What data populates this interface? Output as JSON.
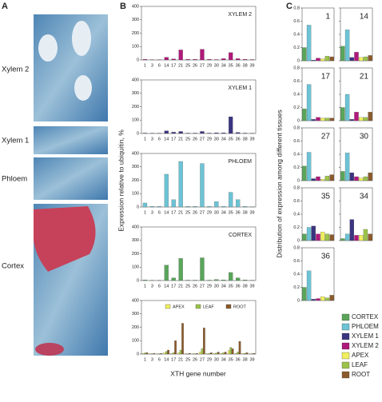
{
  "figure": {
    "panel_labels": [
      "A",
      "B",
      "C"
    ],
    "micrographs": [
      "Xylem 2",
      "Xylem 1",
      "Phloem",
      "Cortex"
    ],
    "panel_b_ylabel": "Expression relative to ubiquitin, %",
    "panel_b_xlabel": "XTH gene number",
    "panel_c_ylabel": "Distribution of expression among different tissues",
    "panel_c_legend": [
      {
        "name": "CORTEX",
        "color": "#5aa55a"
      },
      {
        "name": "PHLOEM",
        "color": "#6cc3d5"
      },
      {
        "name": "XYLEM 1",
        "color": "#3b3480"
      },
      {
        "name": "XYLEM 2",
        "color": "#b0187a"
      },
      {
        "name": "APEX",
        "color": "#f0ef60"
      },
      {
        "name": "LEAF",
        "color": "#9bc34a"
      },
      {
        "name": "ROOT",
        "color": "#8b5a2b"
      }
    ]
  },
  "chart_data": [
    {
      "type": "bar",
      "title": "XYLEM 2",
      "color": "#b0187a",
      "categories": [
        "1",
        "3",
        "6",
        "14",
        "17",
        "21",
        "25",
        "26",
        "27",
        "29",
        "30",
        "34",
        "35",
        "36",
        "38",
        "39"
      ],
      "values": [
        5,
        2,
        2,
        20,
        8,
        75,
        5,
        5,
        80,
        5,
        3,
        10,
        55,
        10,
        5,
        3
      ],
      "ylim": [
        0,
        400
      ],
      "yticks": [
        0,
        100,
        200,
        300,
        400
      ]
    },
    {
      "type": "bar",
      "title": "XYLEM 1",
      "color": "#3b3480",
      "categories": [
        "1",
        "3",
        "6",
        "14",
        "17",
        "21",
        "25",
        "26",
        "27",
        "29",
        "30",
        "34",
        "35",
        "36",
        "38",
        "39"
      ],
      "values": [
        3,
        2,
        2,
        20,
        10,
        15,
        3,
        3,
        15,
        3,
        5,
        5,
        125,
        8,
        3,
        2
      ],
      "ylim": [
        0,
        400
      ],
      "yticks": [
        0,
        100,
        200,
        300,
        400
      ]
    },
    {
      "type": "bar",
      "title": "PHLOEM",
      "color": "#6cc3d5",
      "categories": [
        "1",
        "3",
        "6",
        "14",
        "17",
        "21",
        "25",
        "26",
        "27",
        "29",
        "30",
        "34",
        "35",
        "36",
        "38",
        "39"
      ],
      "values": [
        30,
        5,
        5,
        245,
        55,
        340,
        5,
        5,
        325,
        5,
        40,
        5,
        110,
        55,
        5,
        2
      ],
      "ylim": [
        0,
        400
      ],
      "yticks": [
        0,
        100,
        200,
        300,
        400
      ]
    },
    {
      "type": "bar",
      "title": "CORTEX",
      "color": "#5aa55a",
      "categories": [
        "1",
        "3",
        "6",
        "14",
        "17",
        "21",
        "25",
        "26",
        "27",
        "29",
        "30",
        "34",
        "35",
        "36",
        "38",
        "39"
      ],
      "values": [
        5,
        2,
        2,
        115,
        20,
        165,
        3,
        3,
        170,
        3,
        8,
        5,
        60,
        20,
        5,
        2
      ],
      "ylim": [
        0,
        400
      ],
      "yticks": [
        0,
        100,
        200,
        300,
        400
      ]
    },
    {
      "type": "bar",
      "categories": [
        "1",
        "3",
        "6",
        "14",
        "17",
        "21",
        "25",
        "26",
        "27",
        "29",
        "30",
        "34",
        "35",
        "36",
        "38",
        "39"
      ],
      "series": [
        {
          "name": "APEX",
          "color": "#f0ef60",
          "values": [
            5,
            3,
            2,
            10,
            5,
            10,
            3,
            3,
            15,
            3,
            5,
            5,
            25,
            5,
            5,
            3
          ]
        },
        {
          "name": "LEAF",
          "color": "#9bc34a",
          "values": [
            8,
            3,
            3,
            20,
            10,
            30,
            3,
            3,
            40,
            5,
            8,
            10,
            50,
            15,
            5,
            3
          ]
        },
        {
          "name": "ROOT",
          "color": "#8b5a2b",
          "values": [
            10,
            5,
            5,
            30,
            100,
            230,
            5,
            5,
            195,
            10,
            15,
            15,
            40,
            95,
            10,
            5
          ]
        }
      ],
      "ylim": [
        0,
        400
      ],
      "yticks": [
        0,
        100,
        200,
        300,
        400
      ]
    },
    {
      "type": "bar",
      "title": "1",
      "values": [
        0.2,
        0.54,
        0.01,
        0.04,
        0.03,
        0.07,
        0.06
      ],
      "ylim": [
        0,
        0.8
      ],
      "yticks": [
        0,
        0.2,
        0.4,
        0.6,
        0.8
      ]
    },
    {
      "type": "bar",
      "title": "14",
      "values": [
        0.22,
        0.47,
        0.05,
        0.13,
        0.05,
        0.06,
        0.08
      ],
      "ylim": [
        0,
        0.8
      ],
      "yticks": [
        0,
        0.2,
        0.4,
        0.6,
        0.8
      ]
    },
    {
      "type": "bar",
      "title": "17",
      "values": [
        0.18,
        0.55,
        0.02,
        0.05,
        0.04,
        0.04,
        0.04
      ],
      "ylim": [
        0,
        0.8
      ],
      "yticks": [
        0,
        0.2,
        0.4,
        0.6,
        0.8
      ]
    },
    {
      "type": "bar",
      "title": "21",
      "values": [
        0.2,
        0.4,
        0.02,
        0.13,
        0.05,
        0.05,
        0.13
      ],
      "ylim": [
        0,
        0.8
      ],
      "yticks": [
        0,
        0.2,
        0.4,
        0.6,
        0.8
      ]
    },
    {
      "type": "bar",
      "title": "27",
      "values": [
        0.22,
        0.43,
        0.03,
        0.06,
        0.02,
        0.07,
        0.09
      ],
      "ylim": [
        0,
        0.8
      ],
      "yticks": [
        0,
        0.2,
        0.4,
        0.6,
        0.8
      ]
    },
    {
      "type": "bar",
      "title": "30",
      "values": [
        0.14,
        0.42,
        0.12,
        0.06,
        0.04,
        0.06,
        0.12
      ],
      "ylim": [
        0,
        0.8
      ],
      "yticks": [
        0,
        0.2,
        0.4,
        0.6,
        0.8
      ]
    },
    {
      "type": "bar",
      "title": "35",
      "values": [
        0.1,
        0.2,
        0.22,
        0.1,
        0.13,
        0.1,
        0.09
      ],
      "ylim": [
        0,
        0.8
      ],
      "yticks": [
        0,
        0.2,
        0.4,
        0.6,
        0.8
      ]
    },
    {
      "type": "bar",
      "title": "34",
      "values": [
        0.03,
        0.1,
        0.32,
        0.08,
        0.08,
        0.17,
        0.1
      ],
      "ylim": [
        0,
        0.8
      ],
      "yticks": [
        0,
        0.2,
        0.4,
        0.6,
        0.8
      ]
    },
    {
      "type": "bar",
      "title": "36",
      "values": [
        0.2,
        0.45,
        0.02,
        0.03,
        0.06,
        0.04,
        0.08
      ],
      "ylim": [
        0,
        0.8
      ],
      "yticks": [
        0,
        0.2,
        0.4,
        0.6,
        0.8
      ]
    }
  ]
}
